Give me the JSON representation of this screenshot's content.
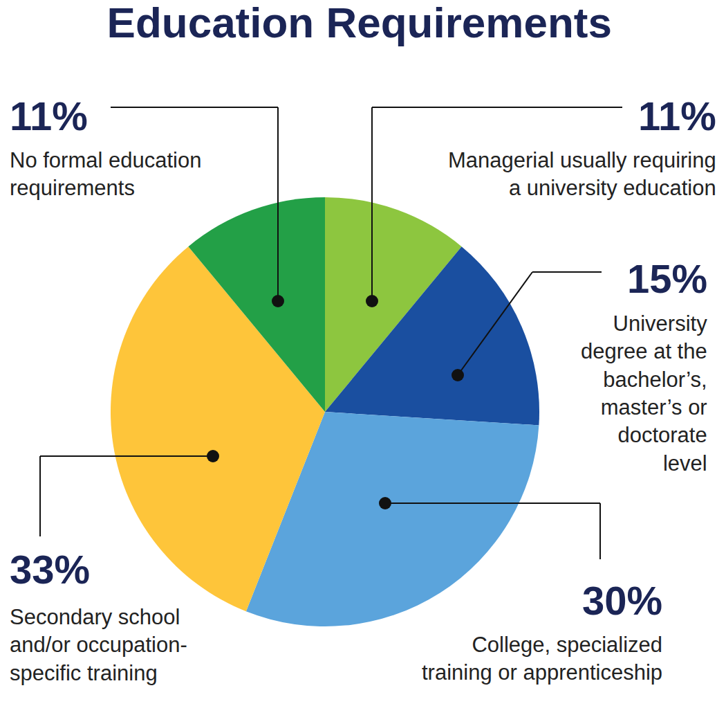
{
  "chart_data": {
    "type": "pie",
    "title": "Education Requirements",
    "categories": [
      "Managerial usually requiring a university education",
      "University degree at the bachelor’s, master’s or doctorate level",
      "College, specialized training or apprenticeship",
      "Secondary school and/or occupation-specific training",
      "No formal education requirements"
    ],
    "values": [
      11,
      15,
      30,
      33,
      11
    ],
    "value_labels": [
      "11%",
      "15%",
      "30%",
      "33%",
      "11%"
    ],
    "colors": [
      "#8dc63f",
      "#1a4fa0",
      "#5ba4dc",
      "#fec53a",
      "#23a047"
    ],
    "data_labels": true
  }
}
